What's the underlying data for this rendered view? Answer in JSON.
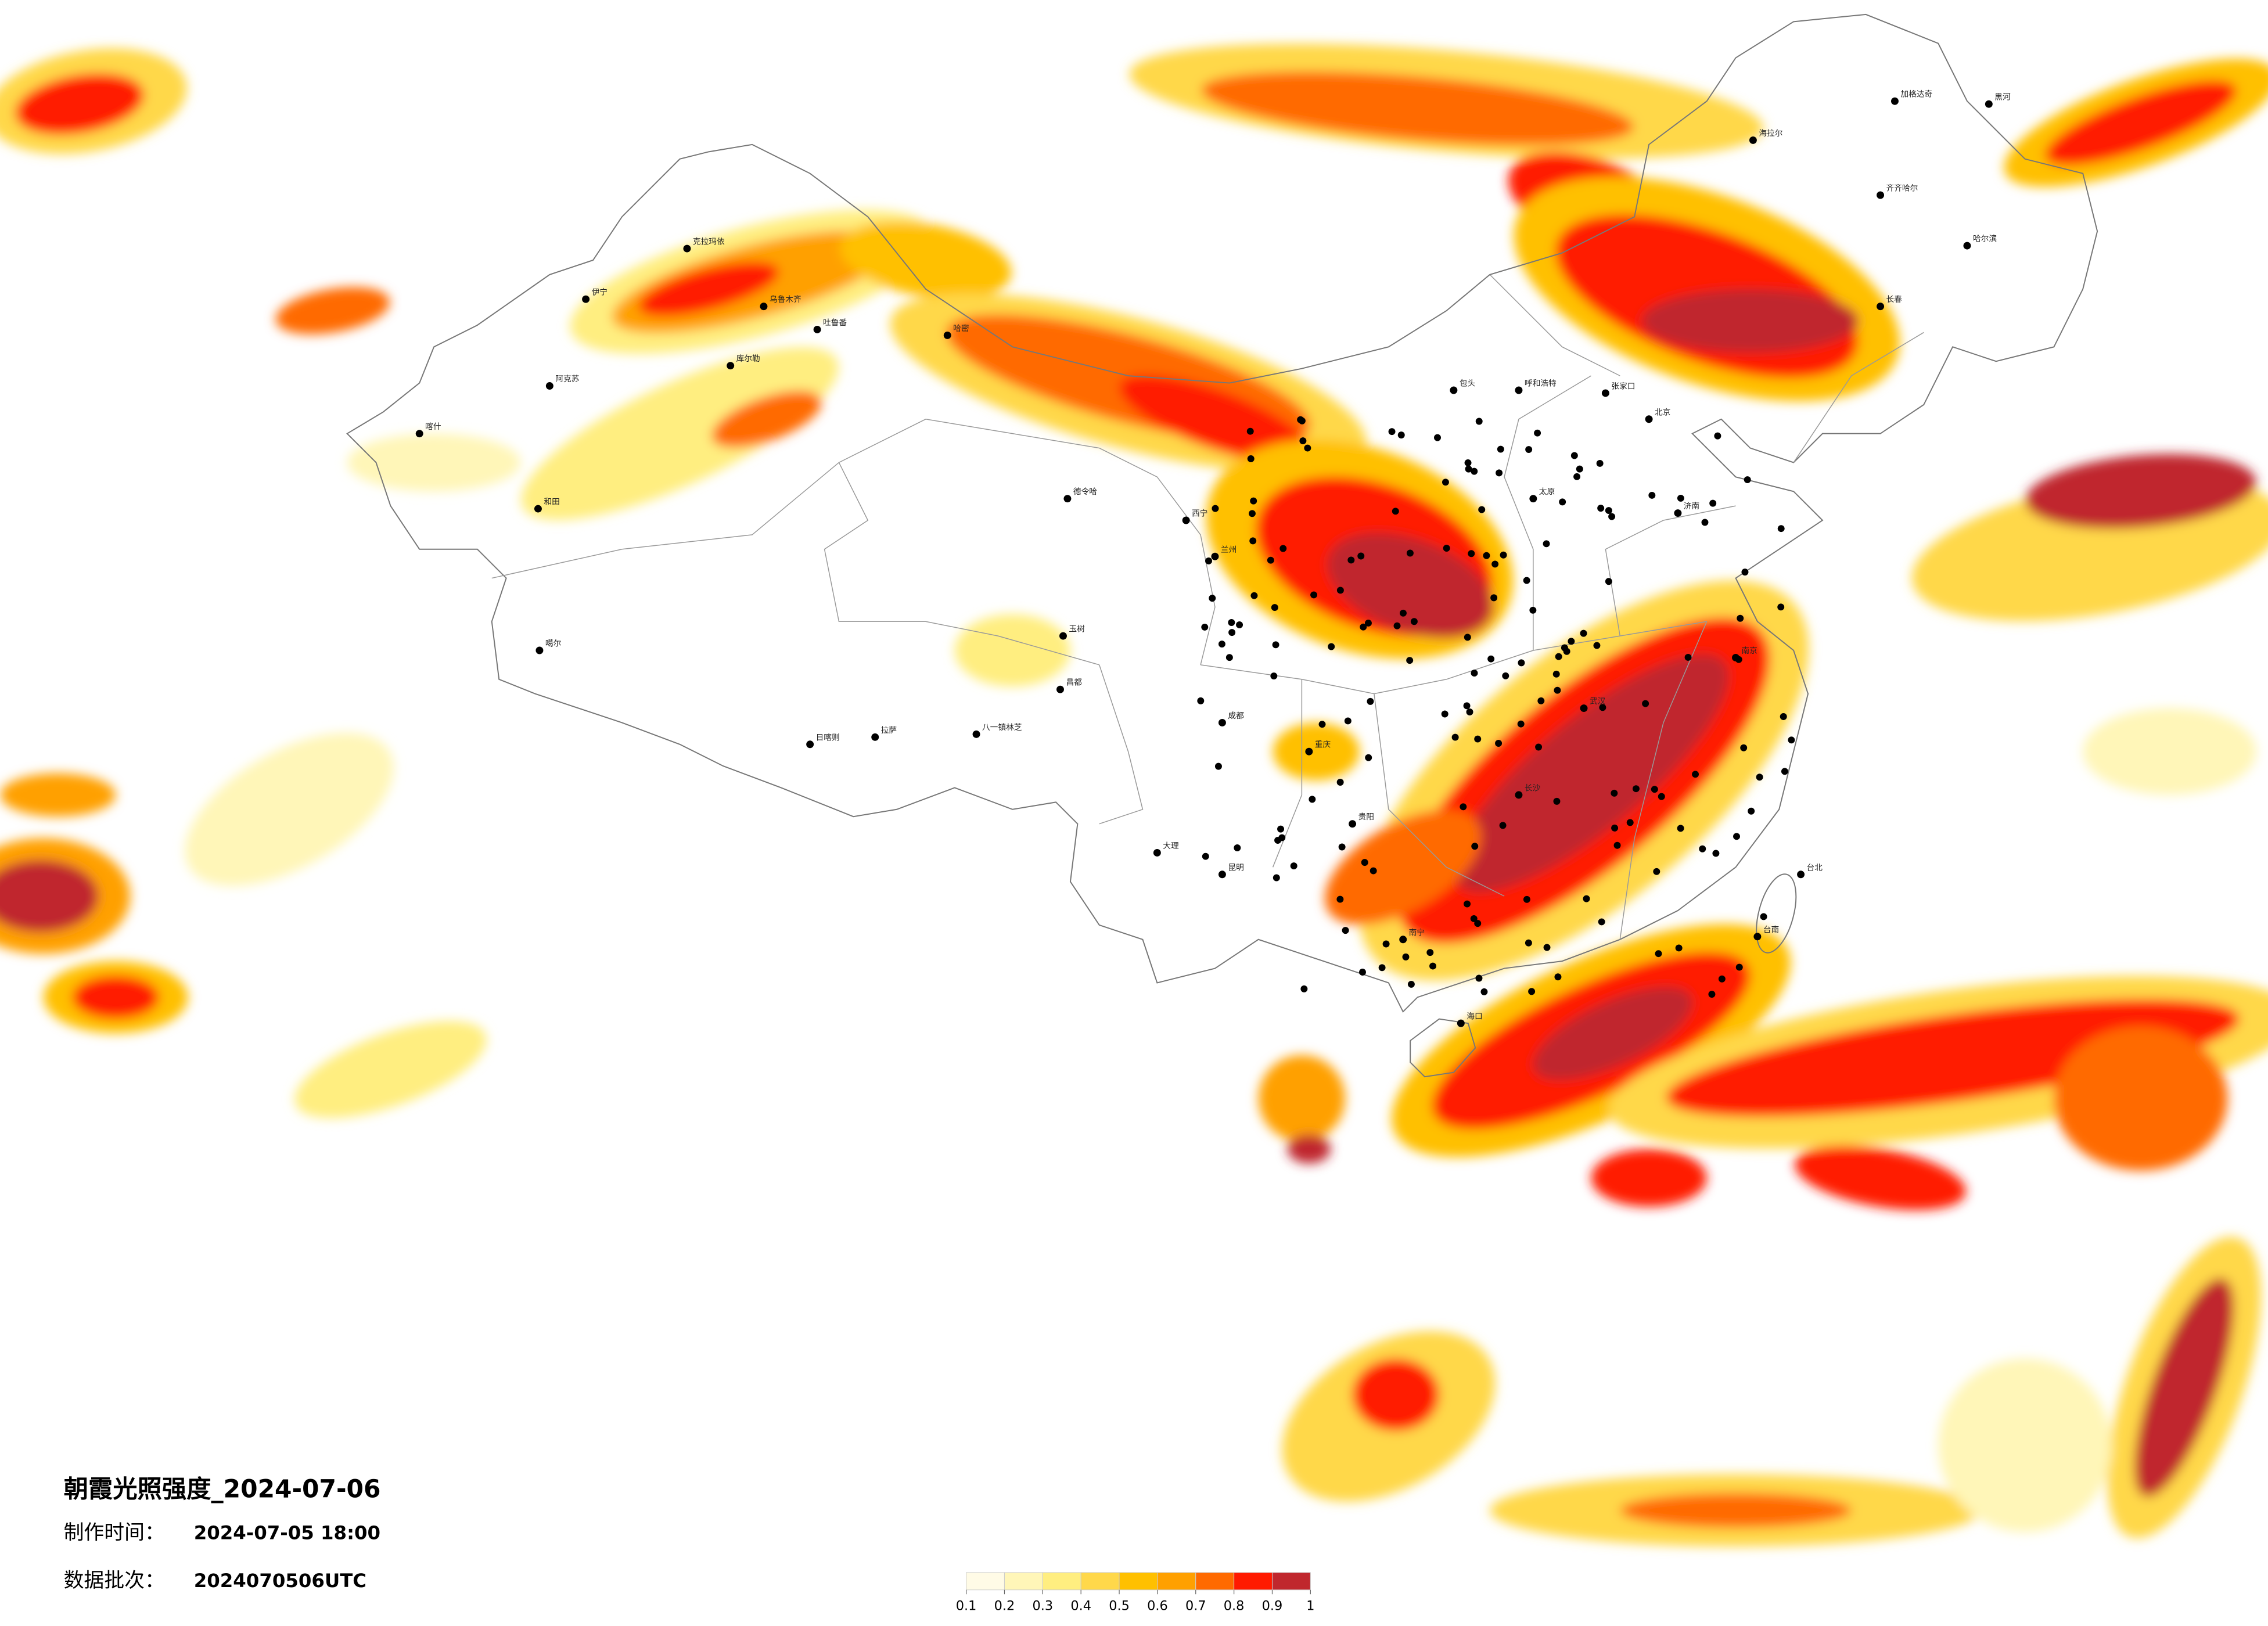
{
  "title": "朝霞光照强度_2024-07-06",
  "made_time_label": "制作时间：",
  "made_time": "2024-07-05 18:00",
  "batch_label": "数据批次：",
  "batch": "2024070506UTC",
  "legend": {
    "ticks": [
      0.1,
      0.2,
      0.3,
      0.4,
      0.5,
      0.6,
      0.7,
      0.8,
      0.9,
      1
    ],
    "colors": [
      "#fffbe6",
      "#fff6b8",
      "#ffee80",
      "#ffd84a",
      "#ffc000",
      "#ffa000",
      "#ff6a00",
      "#ff1a00",
      "#c0272d"
    ]
  },
  "cities": [
    "伊宁",
    "克拉玛依",
    "乌鲁木齐",
    "吐鲁番",
    "哈密",
    "库尔勒",
    "阿克苏",
    "喀什",
    "和田",
    "噶尔",
    "日喀则",
    "拉萨",
    "八一镇林芝",
    "德令哈",
    "玉树",
    "昌都",
    "西宁",
    "兰州",
    "成都",
    "重庆",
    "贵阳",
    "昆明",
    "大理",
    "南宁",
    "海口",
    "台北",
    "台南",
    "武汉",
    "长沙",
    "南京",
    "北京",
    "张家口",
    "呼和浩特",
    "包头",
    "太原",
    "济南",
    "长春",
    "哈尔滨",
    "齐齐哈尔",
    "加格达奇",
    "黑河",
    "海拉尔"
  ]
}
